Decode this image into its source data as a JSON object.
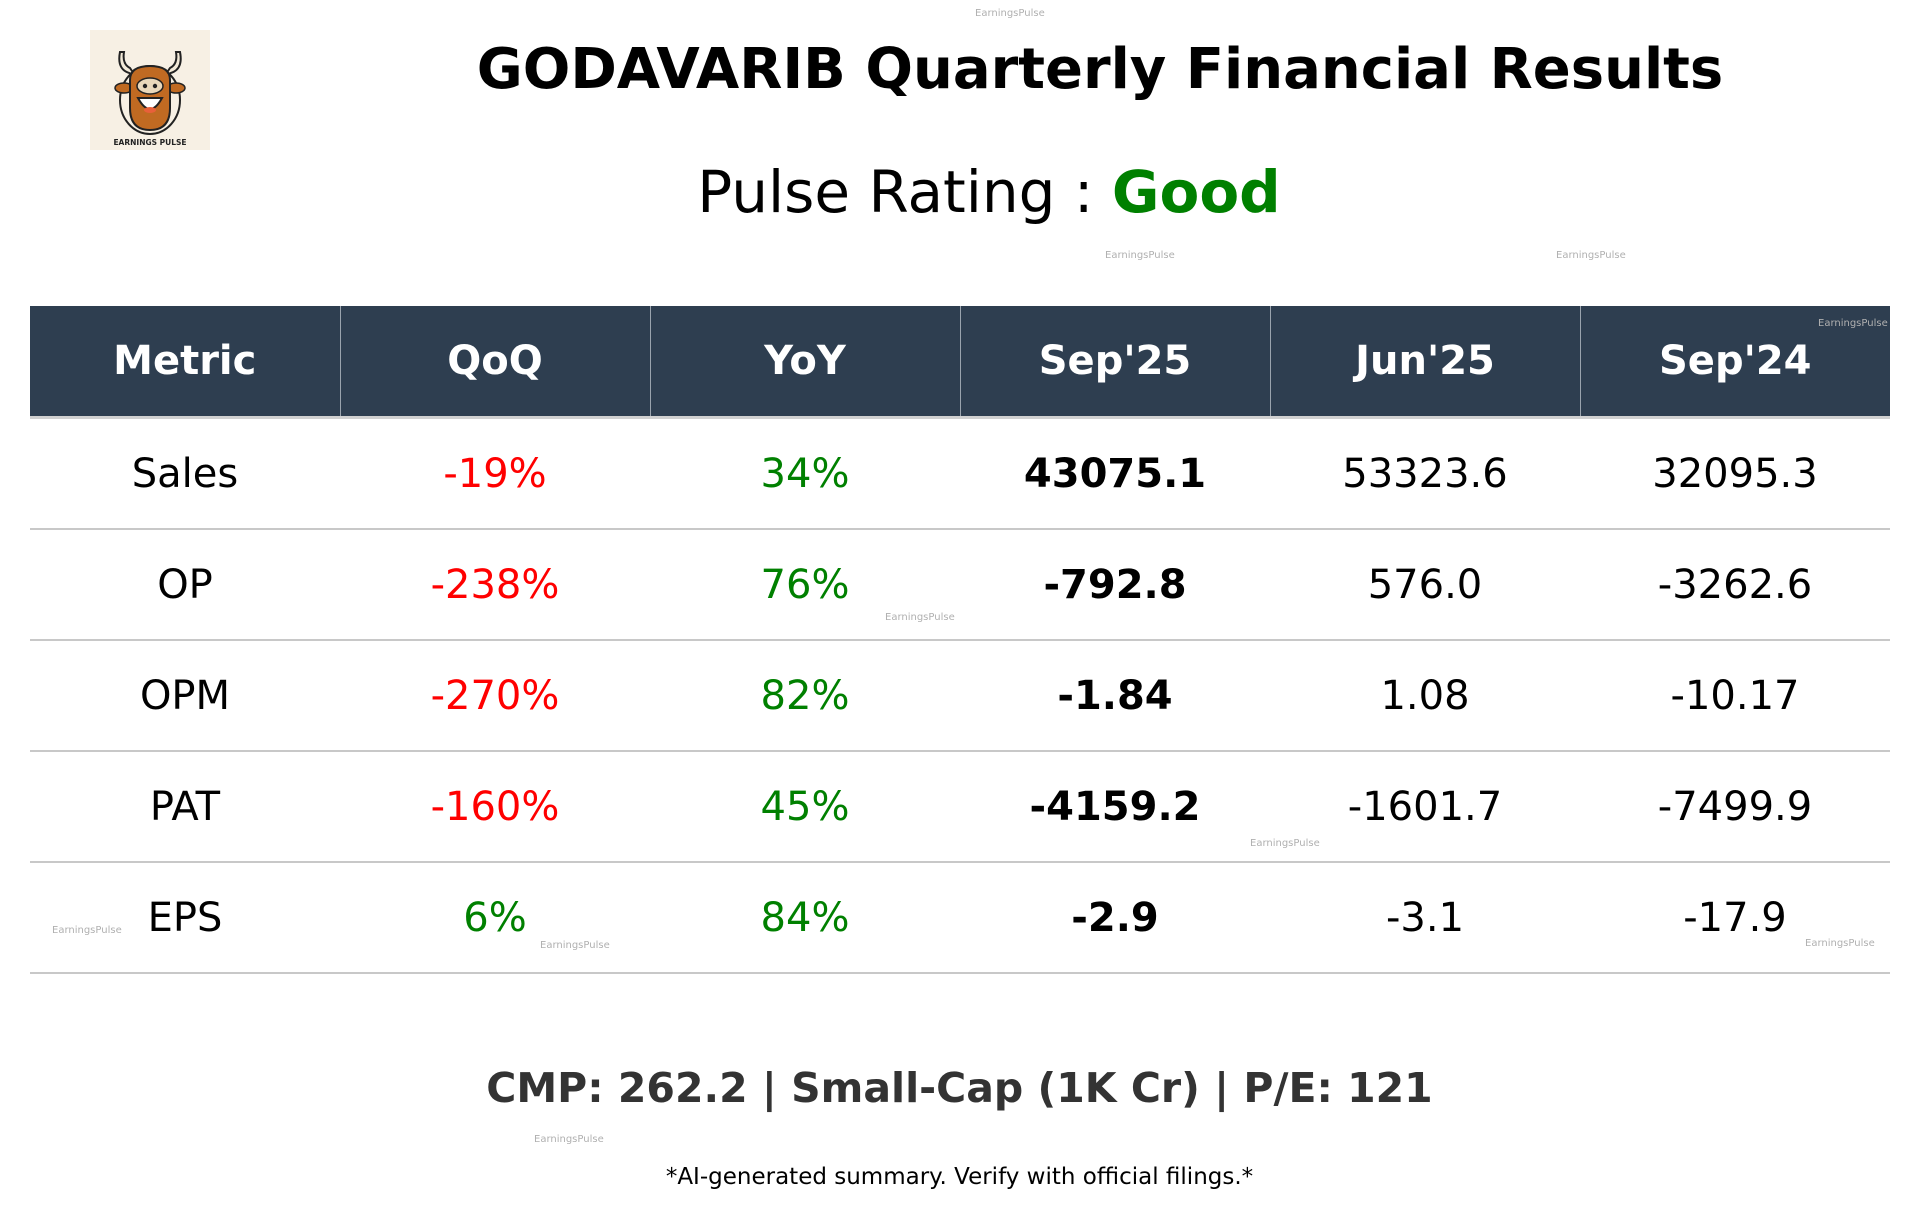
{
  "logo": {
    "text": "EARNINGS PULSE",
    "icon": "bull-head-icon"
  },
  "header": {
    "title": "GODAVARIB Quarterly Financial Results",
    "rating_label": "Pulse Rating : ",
    "rating_value": "Good"
  },
  "colors": {
    "positive": "#008000",
    "negative": "#ff0000",
    "header_bg": "#2e3e50",
    "rating": "#008000"
  },
  "table": {
    "columns": [
      "Metric",
      "QoQ",
      "YoY",
      "Sep'25",
      "Jun'25",
      "Sep'24"
    ],
    "rows": [
      {
        "metric": "Sales",
        "qoq": "-19%",
        "qoq_trend": "negative",
        "yoy": "34%",
        "yoy_trend": "positive",
        "sep25": "43075.1",
        "jun25": "53323.6",
        "sep24": "32095.3"
      },
      {
        "metric": "OP",
        "qoq": "-238%",
        "qoq_trend": "negative",
        "yoy": "76%",
        "yoy_trend": "positive",
        "sep25": "-792.8",
        "jun25": "576.0",
        "sep24": "-3262.6"
      },
      {
        "metric": "OPM",
        "qoq": "-270%",
        "qoq_trend": "negative",
        "yoy": "82%",
        "yoy_trend": "positive",
        "sep25": "-1.84",
        "jun25": "1.08",
        "sep24": "-10.17"
      },
      {
        "metric": "PAT",
        "qoq": "-160%",
        "qoq_trend": "negative",
        "yoy": "45%",
        "yoy_trend": "positive",
        "sep25": "-4159.2",
        "jun25": "-1601.7",
        "sep24": "-7499.9"
      },
      {
        "metric": "EPS",
        "qoq": "6%",
        "qoq_trend": "positive",
        "yoy": "84%",
        "yoy_trend": "positive",
        "sep25": "-2.9",
        "jun25": "-3.1",
        "sep24": "-17.9"
      }
    ]
  },
  "summary": "CMP: 262.2 | Small-Cap (1K Cr) | P/E: 121",
  "disclaimer": "*AI-generated summary. Verify with official filings.*",
  "watermark": "EarningsPulse"
}
